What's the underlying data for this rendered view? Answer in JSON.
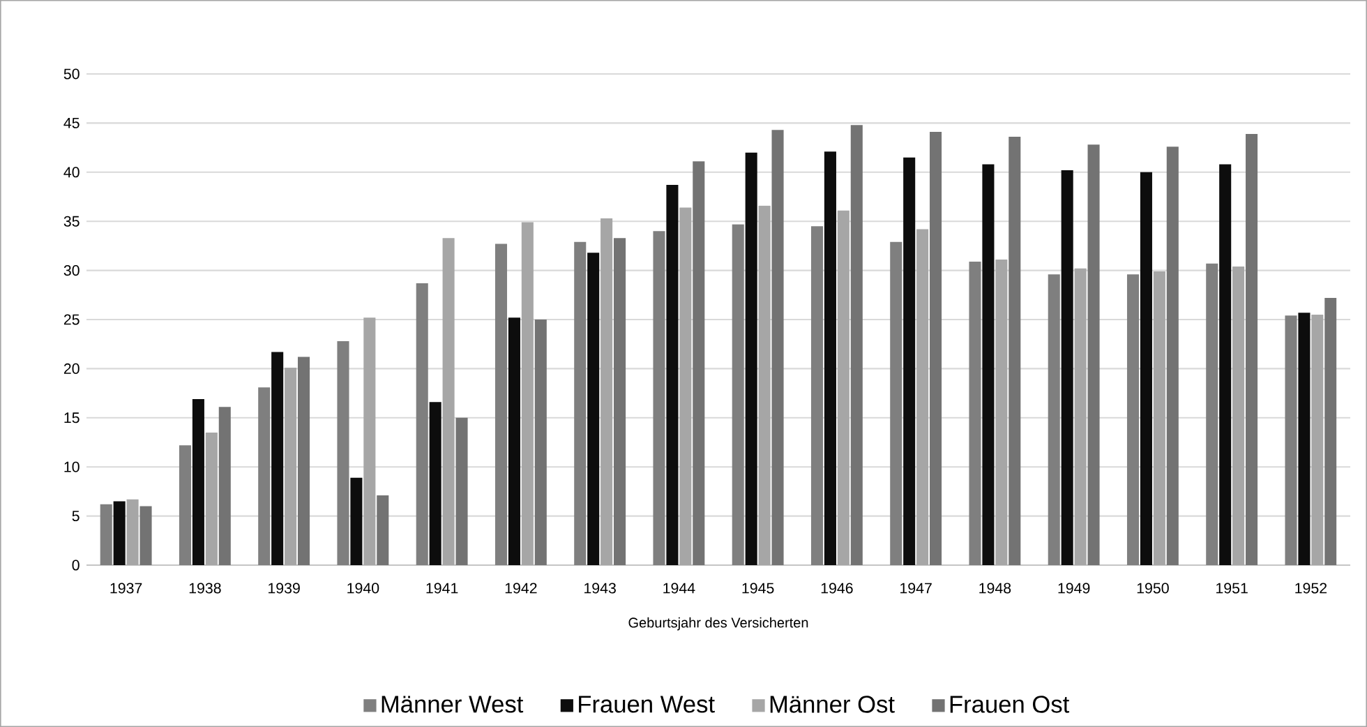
{
  "chart_data": {
    "type": "bar",
    "xlabel": "Geburtsjahr des Versicherten",
    "categories": [
      "1937",
      "1938",
      "1939",
      "1940",
      "1941",
      "1942",
      "1943",
      "1944",
      "1945",
      "1946",
      "1947",
      "1948",
      "1949",
      "1950",
      "1951",
      "1952"
    ],
    "series": [
      {
        "name": "Männer West",
        "color": "#7f7f7f",
        "values": [
          6.2,
          12.2,
          18.1,
          22.8,
          28.7,
          32.7,
          32.9,
          34,
          34.7,
          34.5,
          32.9,
          30.9,
          29.6,
          29.6,
          30.7,
          25.4
        ]
      },
      {
        "name": "Frauen West",
        "color": "#0d0d0d",
        "values": [
          6.5,
          16.9,
          21.7,
          8.9,
          16.6,
          25.2,
          31.8,
          38.7,
          42,
          42.1,
          41.5,
          40.8,
          40.2,
          40,
          40.8,
          25.7
        ]
      },
      {
        "name": "Männer Ost",
        "color": "#a6a6a6",
        "values": [
          6.7,
          13.5,
          20.1,
          25.2,
          33.3,
          34.9,
          35.3,
          36.4,
          36.6,
          36.1,
          34.2,
          31.1,
          30.2,
          29.9,
          30.4,
          25.5
        ]
      },
      {
        "name": "Frauen Ost",
        "color": "#737373",
        "values": [
          6.0,
          16.1,
          21.2,
          7.1,
          15,
          25,
          33.3,
          41.1,
          44.3,
          44.8,
          44.1,
          43.6,
          42.8,
          42.6,
          43.9,
          27.2
        ]
      }
    ],
    "ylim": [
      0,
      50
    ],
    "yticks": [
      0,
      5,
      10,
      15,
      20,
      25,
      30,
      35,
      40,
      45,
      50
    ],
    "grid": "y",
    "legend": "bottom"
  }
}
